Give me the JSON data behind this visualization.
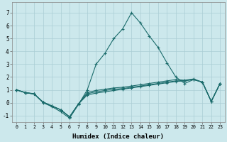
{
  "xlabel": "Humidex (Indice chaleur)",
  "xlim": [
    -0.5,
    23.5
  ],
  "ylim": [
    -1.5,
    7.8
  ],
  "xticks": [
    0,
    1,
    2,
    3,
    4,
    5,
    6,
    7,
    8,
    9,
    10,
    11,
    12,
    13,
    14,
    15,
    16,
    17,
    18,
    19,
    20,
    21,
    22,
    23
  ],
  "yticks": [
    -1,
    0,
    1,
    2,
    3,
    4,
    5,
    6,
    7
  ],
  "bg_color": "#cce8ec",
  "grid_color": "#aacdd4",
  "line_color": "#1a6b6b",
  "lines": [
    [
      1.0,
      0.8,
      0.7,
      0.0,
      -0.3,
      -0.7,
      -1.2,
      -0.15,
      1.0,
      3.0,
      3.85,
      5.0,
      5.75,
      7.0,
      6.2,
      5.2,
      4.3,
      3.1,
      2.0,
      1.5,
      1.8,
      1.6,
      0.1,
      1.5
    ],
    [
      1.0,
      0.78,
      0.68,
      0.05,
      -0.25,
      -0.55,
      -1.1,
      -0.1,
      0.6,
      0.75,
      0.85,
      0.95,
      1.05,
      1.15,
      1.25,
      1.35,
      1.45,
      1.55,
      1.65,
      1.7,
      1.8,
      1.6,
      0.1,
      1.5
    ],
    [
      1.0,
      0.78,
      0.68,
      0.05,
      -0.25,
      -0.55,
      -1.1,
      -0.1,
      0.7,
      0.85,
      0.95,
      1.05,
      1.1,
      1.2,
      1.3,
      1.4,
      1.5,
      1.6,
      1.7,
      1.72,
      1.82,
      1.6,
      0.1,
      1.5
    ],
    [
      1.0,
      0.78,
      0.68,
      0.05,
      -0.25,
      -0.55,
      -1.1,
      -0.1,
      0.8,
      0.95,
      1.05,
      1.15,
      1.2,
      1.3,
      1.4,
      1.5,
      1.6,
      1.7,
      1.8,
      1.75,
      1.85,
      1.6,
      0.1,
      1.5
    ]
  ]
}
